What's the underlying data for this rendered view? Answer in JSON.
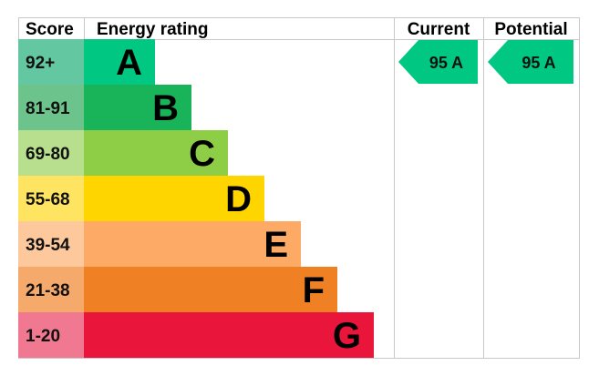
{
  "headers": {
    "score": "Score",
    "energy_rating": "Energy rating",
    "current": "Current",
    "potential": "Potential"
  },
  "chart_data": {
    "type": "bar",
    "title": "",
    "categories": [
      "A",
      "B",
      "C",
      "D",
      "E",
      "F",
      "G"
    ],
    "bands": [
      {
        "letter": "A",
        "range": "92+",
        "bar_color": "#00c781",
        "score_bg": "#63c7a2"
      },
      {
        "letter": "B",
        "range": "81-91",
        "bar_color": "#19b459",
        "score_bg": "#6cc48c"
      },
      {
        "letter": "C",
        "range": "69-80",
        "bar_color": "#8dce46",
        "score_bg": "#b7df8d"
      },
      {
        "letter": "D",
        "range": "55-68",
        "bar_color": "#ffd500",
        "score_bg": "#ffe462"
      },
      {
        "letter": "E",
        "range": "39-54",
        "bar_color": "#fcaa65",
        "score_bg": "#fdc89b"
      },
      {
        "letter": "F",
        "range": "21-38",
        "bar_color": "#ef8023",
        "score_bg": "#f5a96b"
      },
      {
        "letter": "G",
        "range": "1-20",
        "bar_color": "#e9153b",
        "score_bg": "#f07890"
      }
    ],
    "current": {
      "value": 95,
      "band": "A",
      "label": "95  A",
      "color": "#00c781"
    },
    "potential": {
      "value": 95,
      "band": "A",
      "label": "95  A",
      "color": "#00c781"
    }
  }
}
